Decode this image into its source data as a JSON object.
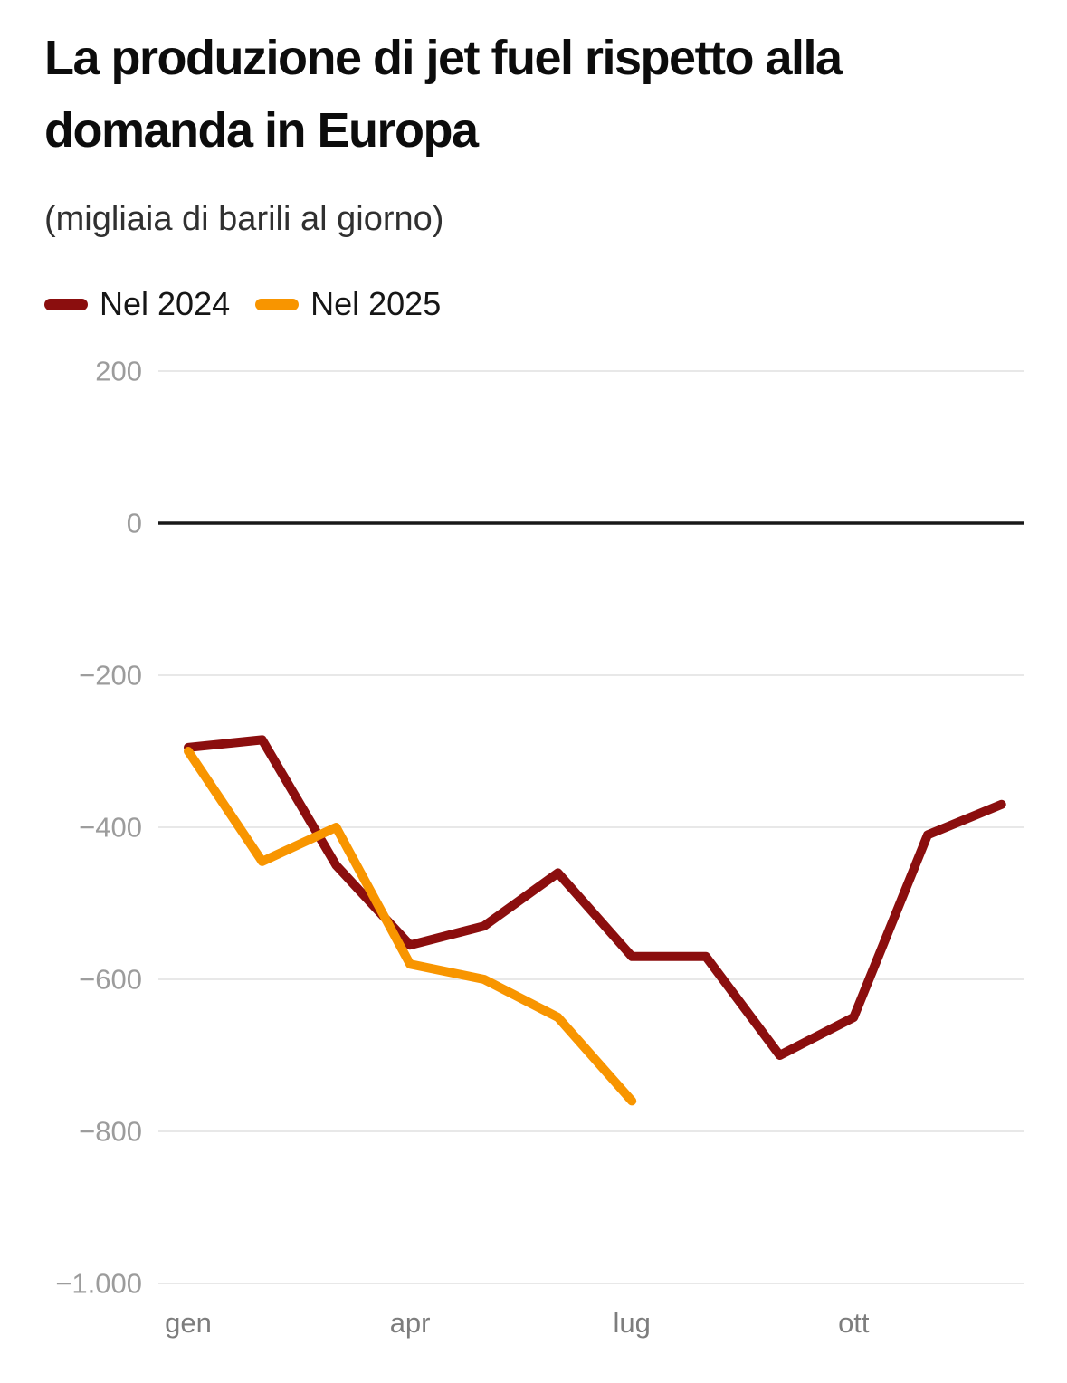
{
  "header": {
    "title": "La produzione di jet fuel rispetto alla\ndomanda in Europa",
    "subtitle": "(migliaia di barili al giorno)"
  },
  "chart_data": {
    "type": "line",
    "title": "La produzione di jet fuel rispetto alla domanda in Europa",
    "subtitle": "(migliaia di barili al giorno)",
    "x_unit": "month",
    "x_ticks": [
      {
        "index": 0,
        "label": "gen"
      },
      {
        "index": 3,
        "label": "apr"
      },
      {
        "index": 6,
        "label": "lug"
      },
      {
        "index": 9,
        "label": "ott"
      }
    ],
    "y_ticks": [
      {
        "value": 200,
        "label": "200"
      },
      {
        "value": 0,
        "label": "0"
      },
      {
        "value": -200,
        "label": "−200"
      },
      {
        "value": -400,
        "label": "−400"
      },
      {
        "value": -600,
        "label": "−600"
      },
      {
        "value": -800,
        "label": "−800"
      },
      {
        "value": -1000,
        "label": "−1.000"
      }
    ],
    "ylim": [
      -1000,
      200
    ],
    "grid": true,
    "zero_line": true,
    "legend_position": "top-left",
    "series": [
      {
        "name": "Nel 2024",
        "color": "#8B0E0E",
        "values": [
          -295,
          -285,
          -450,
          -555,
          -530,
          -460,
          -570,
          -570,
          -700,
          -650,
          -410,
          -370
        ]
      },
      {
        "name": "Nel 2025",
        "color": "#F89500",
        "values": [
          -300,
          -445,
          -400,
          -580,
          -600,
          -650,
          -760
        ]
      }
    ]
  }
}
